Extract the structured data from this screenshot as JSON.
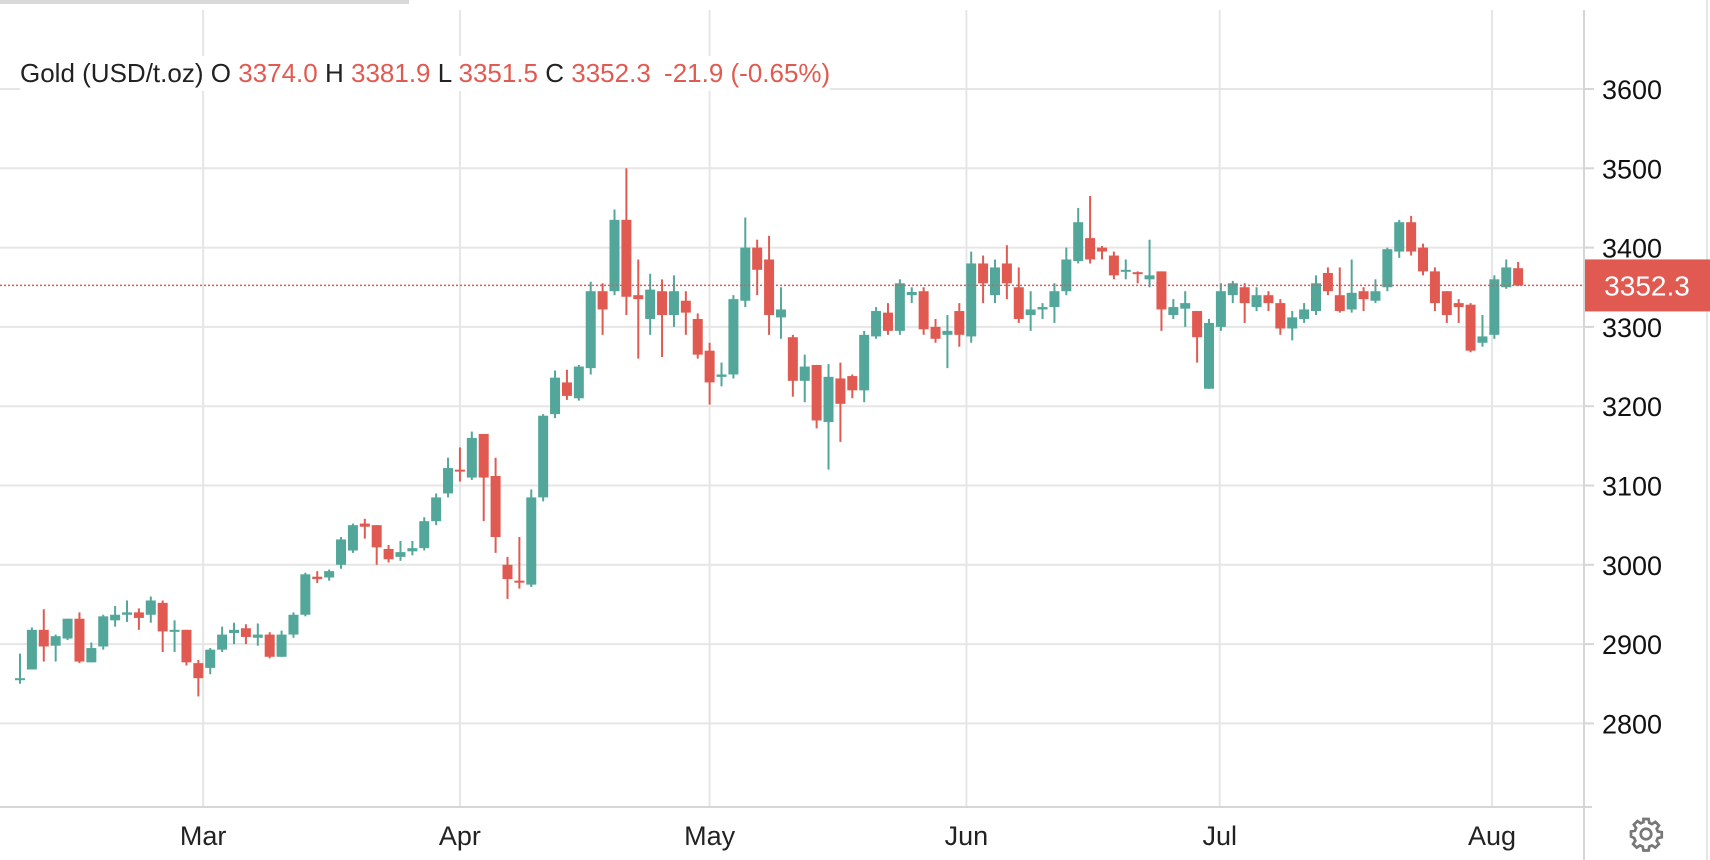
{
  "header": {
    "symbol": "Gold (USD/t.oz)",
    "open_label": "O",
    "open": "3374.0",
    "high_label": "H",
    "high": "3381.9",
    "low_label": "L",
    "low": "3351.5",
    "close_label": "C",
    "close": "3352.3",
    "change": "-21.9 (-0.65%)"
  },
  "price_tag": "3352.3",
  "colors": {
    "up": "#52a69a",
    "down": "#e05a52",
    "grid": "#e6e6e6",
    "axis": "#d6d6d6"
  },
  "chart_data": {
    "type": "candlestick",
    "title": "Gold (USD/t.oz)",
    "ylim": [
      2700,
      3650
    ],
    "y_ticks": [
      2800,
      2900,
      3000,
      3100,
      3200,
      3300,
      3400,
      3500,
      3600
    ],
    "y_tick_labels": [
      "2800",
      "2900",
      "3000",
      "3100",
      "3200",
      "3300",
      "3400",
      "3500",
      "3600"
    ],
    "x_ticks": [
      {
        "label": "Mar",
        "index": 15.4
      },
      {
        "label": "Apr",
        "index": 37.0
      },
      {
        "label": "May",
        "index": 58.0
      },
      {
        "label": "Jun",
        "index": 79.6
      },
      {
        "label": "Jul",
        "index": 100.9
      },
      {
        "label": "Aug",
        "index": 123.8
      }
    ],
    "last_price": 3352.3,
    "ohlc": [
      [
        2855,
        2888,
        2850,
        2857
      ],
      [
        2868,
        2921,
        2868,
        2918
      ],
      [
        2918,
        2944,
        2878,
        2897
      ],
      [
        2898,
        2912,
        2878,
        2910
      ],
      [
        2907,
        2932,
        2905,
        2932
      ],
      [
        2932,
        2940,
        2876,
        2878
      ],
      [
        2877,
        2902,
        2877,
        2895
      ],
      [
        2897,
        2937,
        2893,
        2935
      ],
      [
        2930,
        2948,
        2922,
        2937
      ],
      [
        2937,
        2955,
        2928,
        2940
      ],
      [
        2940,
        2945,
        2918,
        2933
      ],
      [
        2937,
        2960,
        2927,
        2955
      ],
      [
        2952,
        2955,
        2890,
        2916
      ],
      [
        2917,
        2930,
        2890,
        2918
      ],
      [
        2918,
        2918,
        2873,
        2877
      ],
      [
        2876,
        2880,
        2834,
        2857
      ],
      [
        2870,
        2895,
        2862,
        2893
      ],
      [
        2893,
        2922,
        2890,
        2912
      ],
      [
        2914,
        2927,
        2900,
        2918
      ],
      [
        2920,
        2925,
        2900,
        2909
      ],
      [
        2908,
        2926,
        2898,
        2912
      ],
      [
        2912,
        2915,
        2882,
        2884
      ],
      [
        2884,
        2917,
        2884,
        2912
      ],
      [
        2912,
        2940,
        2908,
        2937
      ],
      [
        2937,
        2990,
        2935,
        2988
      ],
      [
        2985,
        2992,
        2977,
        2982
      ],
      [
        2984,
        2994,
        2980,
        2992
      ],
      [
        3000,
        3035,
        2995,
        3032
      ],
      [
        3018,
        3052,
        3015,
        3050
      ],
      [
        3052,
        3058,
        3033,
        3048
      ],
      [
        3050,
        3050,
        3000,
        3022
      ],
      [
        3020,
        3025,
        3003,
        3007
      ],
      [
        3010,
        3030,
        3005,
        3016
      ],
      [
        3017,
        3030,
        3012,
        3021
      ],
      [
        3021,
        3060,
        3018,
        3055
      ],
      [
        3055,
        3090,
        3050,
        3085
      ],
      [
        3090,
        3135,
        3085,
        3122
      ],
      [
        3120,
        3148,
        3105,
        3118
      ],
      [
        3110,
        3168,
        3107,
        3160
      ],
      [
        3165,
        3165,
        3055,
        3110
      ],
      [
        3112,
        3135,
        3015,
        3035
      ],
      [
        3000,
        3010,
        2957,
        2982
      ],
      [
        2980,
        3035,
        2970,
        2978
      ],
      [
        2975,
        3095,
        2972,
        3085
      ],
      [
        3085,
        3190,
        3080,
        3188
      ],
      [
        3190,
        3245,
        3185,
        3236
      ],
      [
        3230,
        3246,
        3208,
        3213
      ],
      [
        3210,
        3252,
        3207,
        3250
      ],
      [
        3248,
        3357,
        3240,
        3345
      ],
      [
        3345,
        3355,
        3290,
        3322
      ],
      [
        3345,
        3448,
        3340,
        3435
      ],
      [
        3435,
        3500,
        3315,
        3338
      ],
      [
        3340,
        3385,
        3260,
        3335
      ],
      [
        3310,
        3367,
        3290,
        3347
      ],
      [
        3345,
        3360,
        3262,
        3315
      ],
      [
        3315,
        3365,
        3300,
        3345
      ],
      [
        3333,
        3345,
        3290,
        3318
      ],
      [
        3310,
        3317,
        3260,
        3265
      ],
      [
        3270,
        3280,
        3202,
        3230
      ],
      [
        3237,
        3255,
        3225,
        3240
      ],
      [
        3240,
        3340,
        3235,
        3335
      ],
      [
        3333,
        3438,
        3325,
        3400
      ],
      [
        3400,
        3410,
        3340,
        3372
      ],
      [
        3385,
        3415,
        3290,
        3315
      ],
      [
        3312,
        3350,
        3285,
        3322
      ],
      [
        3287,
        3290,
        3212,
        3232
      ],
      [
        3232,
        3265,
        3205,
        3250
      ],
      [
        3252,
        3252,
        3172,
        3182
      ],
      [
        3180,
        3253,
        3120,
        3237
      ],
      [
        3235,
        3255,
        3155,
        3203
      ],
      [
        3238,
        3240,
        3210,
        3220
      ],
      [
        3220,
        3295,
        3205,
        3290
      ],
      [
        3288,
        3325,
        3285,
        3320
      ],
      [
        3318,
        3330,
        3290,
        3295
      ],
      [
        3295,
        3360,
        3290,
        3355
      ],
      [
        3340,
        3350,
        3330,
        3344
      ],
      [
        3345,
        3350,
        3290,
        3297
      ],
      [
        3300,
        3310,
        3280,
        3285
      ],
      [
        3290,
        3315,
        3248,
        3295
      ],
      [
        3320,
        3330,
        3275,
        3290
      ],
      [
        3288,
        3395,
        3280,
        3380
      ],
      [
        3380,
        3390,
        3330,
        3355
      ],
      [
        3340,
        3385,
        3330,
        3375
      ],
      [
        3380,
        3403,
        3335,
        3355
      ],
      [
        3350,
        3375,
        3305,
        3310
      ],
      [
        3315,
        3345,
        3295,
        3322
      ],
      [
        3322,
        3330,
        3310,
        3325
      ],
      [
        3325,
        3355,
        3305,
        3345
      ],
      [
        3345,
        3400,
        3340,
        3385
      ],
      [
        3383,
        3450,
        3380,
        3432
      ],
      [
        3412,
        3465,
        3380,
        3385
      ],
      [
        3400,
        3402,
        3385,
        3395
      ],
      [
        3390,
        3395,
        3360,
        3365
      ],
      [
        3370,
        3385,
        3360,
        3372
      ],
      [
        3369,
        3370,
        3355,
        3367
      ],
      [
        3360,
        3410,
        3350,
        3365
      ],
      [
        3370,
        3370,
        3295,
        3322
      ],
      [
        3315,
        3335,
        3310,
        3325
      ],
      [
        3323,
        3345,
        3300,
        3330
      ],
      [
        3320,
        3320,
        3255,
        3287
      ],
      [
        3222,
        3310,
        3222,
        3305
      ],
      [
        3300,
        3355,
        3295,
        3345
      ],
      [
        3340,
        3358,
        3330,
        3355
      ],
      [
        3350,
        3355,
        3305,
        3330
      ],
      [
        3325,
        3350,
        3320,
        3340
      ],
      [
        3340,
        3345,
        3320,
        3330
      ],
      [
        3330,
        3335,
        3290,
        3298
      ],
      [
        3298,
        3320,
        3283,
        3312
      ],
      [
        3310,
        3330,
        3305,
        3322
      ],
      [
        3320,
        3365,
        3315,
        3355
      ],
      [
        3368,
        3375,
        3340,
        3345
      ],
      [
        3340,
        3375,
        3318,
        3320
      ],
      [
        3322,
        3385,
        3318,
        3343
      ],
      [
        3345,
        3350,
        3320,
        3335
      ],
      [
        3333,
        3360,
        3330,
        3345
      ],
      [
        3350,
        3400,
        3345,
        3398
      ],
      [
        3395,
        3435,
        3387,
        3432
      ],
      [
        3432,
        3440,
        3390,
        3395
      ],
      [
        3400,
        3405,
        3365,
        3370
      ],
      [
        3370,
        3375,
        3320,
        3330
      ],
      [
        3345,
        3345,
        3305,
        3315
      ],
      [
        3330,
        3335,
        3305,
        3325
      ],
      [
        3328,
        3330,
        3268,
        3270
      ],
      [
        3280,
        3315,
        3275,
        3288
      ],
      [
        3290,
        3365,
        3285,
        3360
      ],
      [
        3350,
        3385,
        3348,
        3375
      ],
      [
        3374,
        3381.9,
        3351.5,
        3352.3
      ]
    ]
  }
}
